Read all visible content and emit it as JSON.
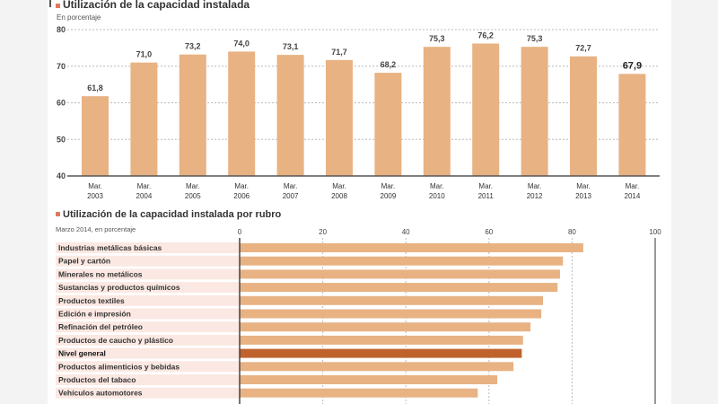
{
  "chart_data": [
    {
      "type": "bar",
      "title": "Utilización de la capacidad instalada",
      "subtitle": "En porcentaje",
      "categories": [
        "Mar.\n2003",
        "Mar.\n2004",
        "Mar.\n2005",
        "Mar.\n2006",
        "Mar.\n2007",
        "Mar.\n2008",
        "Mar.\n2009",
        "Mar.\n2010",
        "Mar.\n2011",
        "Mar.\n2012",
        "Mar.\n2013",
        "Mar.\n2014"
      ],
      "values": [
        61.8,
        71.0,
        73.2,
        74.0,
        73.1,
        71.7,
        68.2,
        75.3,
        76.2,
        75.3,
        72.7,
        67.9
      ],
      "data_labels": [
        "61,8",
        "71,0",
        "73,2",
        "74,0",
        "73,1",
        "71,7",
        "68,2",
        "75,3",
        "76,2",
        "75,3",
        "72,7",
        "67,9"
      ],
      "ylim": [
        40,
        80
      ],
      "yticks": [
        40,
        50,
        60,
        70,
        80
      ],
      "grid": true,
      "bar_color": "#e8b283"
    },
    {
      "type": "bar",
      "orientation": "horizontal",
      "title": "Utilización de la capacidad instalada por rubro",
      "subtitle": "Marzo 2014, en porcentaje",
      "categories": [
        "Industrias metálicas básicas",
        "Papel y cartón",
        "Minerales no metálicos",
        "Sustancias y productos químicos",
        "Productos textiles",
        "Edición e impresión",
        "Refinación del petróleo",
        "Productos de caucho y plástico",
        "Nivel general",
        "Productos alimenticios y bebidas",
        "Productos del tabaco",
        "Vehículos automotores"
      ],
      "values": [
        82.7,
        77.8,
        77.1,
        76.5,
        73.0,
        72.6,
        70.0,
        68.2,
        67.9,
        65.9,
        62.0,
        57.3
      ],
      "highlight": "Nivel general",
      "xlim": [
        0,
        100
      ],
      "xticks": [
        0,
        20,
        40,
        60,
        80,
        100
      ],
      "grid": true,
      "bar_color": "#e8b283",
      "highlight_color": "#c0622e",
      "accent_color": "#e07a5f"
    }
  ]
}
